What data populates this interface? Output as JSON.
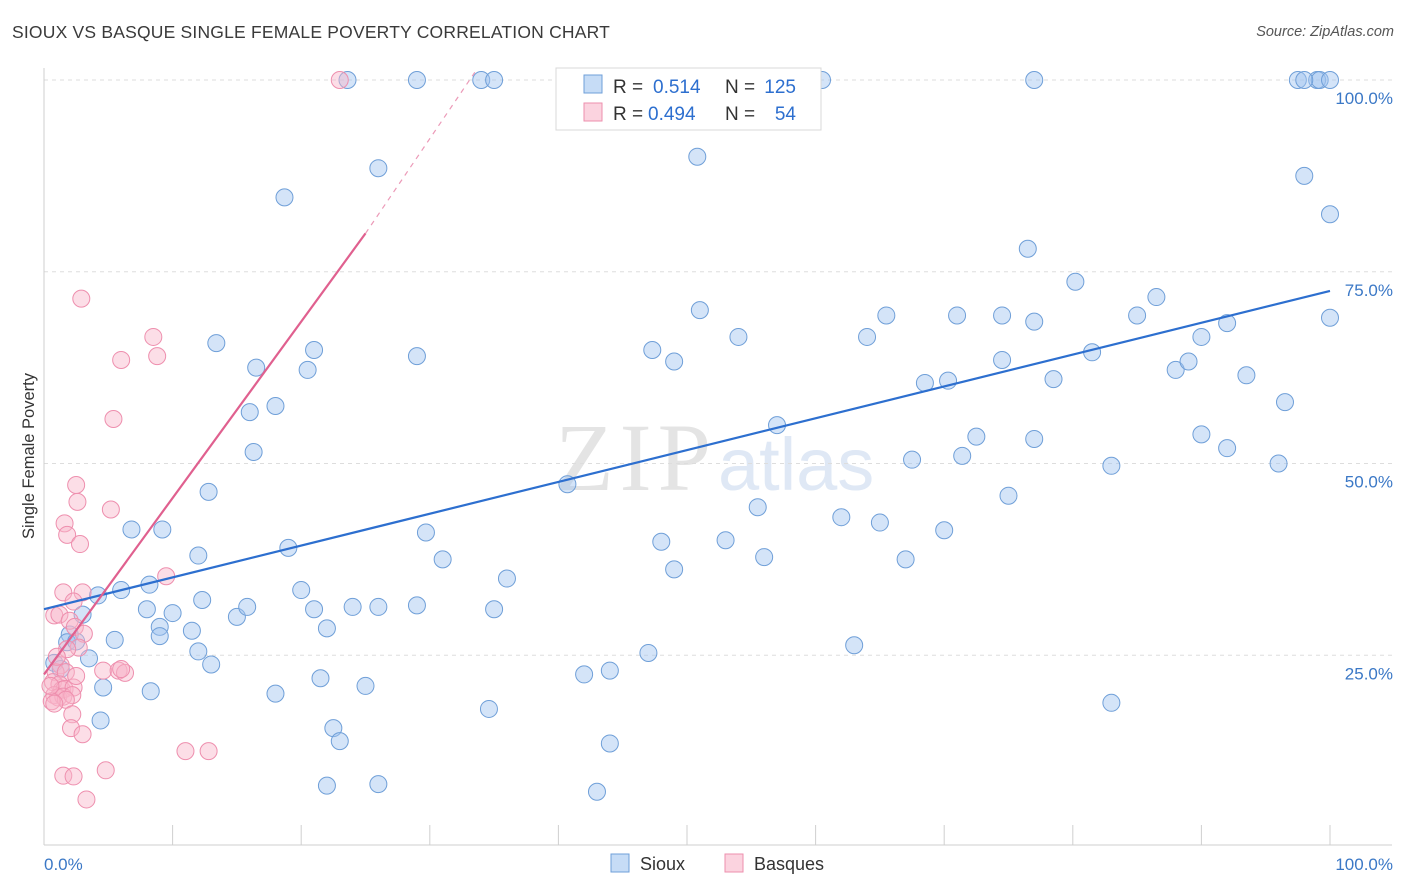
{
  "title": "SIOUX VS BASQUE SINGLE FEMALE POVERTY CORRELATION CHART",
  "source": "Source: ZipAtlas.com",
  "watermark": {
    "zip": "ZIP",
    "atlas": "atlas"
  },
  "colors": {
    "sioux_fill": "rgba(160,196,240,0.45)",
    "sioux_stroke": "#6f9fd8",
    "sioux_line": "#2d6fcf",
    "basque_fill": "rgba(248,182,202,0.45)",
    "basque_stroke": "#ee8fae",
    "basque_line": "#e0608f",
    "tick_label": "#3b78c6",
    "grid": "#dddddd"
  },
  "legend": {
    "rows": [
      {
        "r_label": "R =",
        "r_value": "0.514",
        "n_label": "N =",
        "n_value": "125"
      },
      {
        "r_label": "R =",
        "r_value": "0.494",
        "n_label": "N =",
        "n_value": "54"
      }
    ]
  },
  "bottom_legend": {
    "sioux": "Sioux",
    "basques": "Basques"
  },
  "chart_data": {
    "type": "scatter",
    "title": "SIOUX VS BASQUE SINGLE FEMALE POVERTY CORRELATION CHART",
    "xlabel": "",
    "ylabel": "Single Female Poverty",
    "xlim": [
      0,
      100
    ],
    "ylim": [
      0,
      103
    ],
    "x_tick_labels": [
      "0.0%",
      "100.0%"
    ],
    "y_tick_labels": [
      {
        "value": 25,
        "label": "25.0%"
      },
      {
        "value": 50,
        "label": "50.0%"
      },
      {
        "value": 75,
        "label": "75.0%"
      },
      {
        "value": 100,
        "label": "100.0%"
      }
    ],
    "series": [
      {
        "name": "Sioux",
        "r": 0.514,
        "n": 125,
        "trend": {
          "x0": 0,
          "y0": 31,
          "x1": 100,
          "y1": 72.5
        },
        "points": [
          [
            23.6,
            100
          ],
          [
            29,
            100
          ],
          [
            34,
            100
          ],
          [
            35,
            100
          ],
          [
            43,
            100
          ],
          [
            60.5,
            100
          ],
          [
            77,
            100
          ],
          [
            97.5,
            100
          ],
          [
            99,
            100
          ],
          [
            99.2,
            100
          ],
          [
            98,
            100
          ],
          [
            100,
            100
          ],
          [
            26,
            88.5
          ],
          [
            50.8,
            90
          ],
          [
            98,
            87.5
          ],
          [
            100,
            82.5
          ],
          [
            18.7,
            84.7
          ],
          [
            76.5,
            78
          ],
          [
            80.2,
            73.7
          ],
          [
            13.4,
            65.7
          ],
          [
            16.5,
            62.5
          ],
          [
            20.5,
            62.2
          ],
          [
            21,
            64.8
          ],
          [
            29,
            64
          ],
          [
            47.3,
            64.8
          ],
          [
            49,
            63.3
          ],
          [
            54,
            66.5
          ],
          [
            74.5,
            63.5
          ],
          [
            78.5,
            61
          ],
          [
            81.5,
            64.5
          ],
          [
            88,
            62.2
          ],
          [
            89,
            63.3
          ],
          [
            93.5,
            61.5
          ],
          [
            96.5,
            58
          ],
          [
            68.5,
            60.5
          ],
          [
            70.3,
            60.8
          ],
          [
            65.5,
            69.3
          ],
          [
            71,
            69.3
          ],
          [
            74.5,
            69.3
          ],
          [
            77,
            68.5
          ],
          [
            85,
            69.3
          ],
          [
            86.5,
            71.7
          ],
          [
            90,
            66.5
          ],
          [
            92,
            68.3
          ],
          [
            100,
            69
          ],
          [
            51,
            70
          ],
          [
            64,
            66.5
          ],
          [
            57,
            55
          ],
          [
            16,
            56.7
          ],
          [
            18,
            57.5
          ],
          [
            16.3,
            51.5
          ],
          [
            12.8,
            46.3
          ],
          [
            40.7,
            47.3
          ],
          [
            55.5,
            44.3
          ],
          [
            62,
            43
          ],
          [
            65,
            42.3
          ],
          [
            70,
            41.3
          ],
          [
            72.5,
            53.5
          ],
          [
            75,
            45.8
          ],
          [
            77,
            53.2
          ],
          [
            83,
            49.7
          ],
          [
            90,
            53.8
          ],
          [
            92,
            52
          ],
          [
            96,
            50
          ],
          [
            67.5,
            50.5
          ],
          [
            71.4,
            51
          ],
          [
            6.8,
            41.4
          ],
          [
            9.2,
            41.4
          ],
          [
            12,
            38
          ],
          [
            19,
            39
          ],
          [
            29.7,
            41
          ],
          [
            31,
            37.5
          ],
          [
            36,
            35
          ],
          [
            48,
            39.8
          ],
          [
            49,
            36.2
          ],
          [
            53,
            40
          ],
          [
            56,
            37.8
          ],
          [
            67,
            37.5
          ],
          [
            4.2,
            32.8
          ],
          [
            6,
            33.5
          ],
          [
            8.2,
            34.2
          ],
          [
            8,
            31
          ],
          [
            10,
            30.5
          ],
          [
            12.3,
            32.2
          ],
          [
            15,
            30
          ],
          [
            15.8,
            31.3
          ],
          [
            20,
            33.5
          ],
          [
            21,
            31
          ],
          [
            24,
            31.3
          ],
          [
            26,
            31.3
          ],
          [
            29,
            31.5
          ],
          [
            35,
            31
          ],
          [
            3,
            30.3
          ],
          [
            9,
            28.7
          ],
          [
            11.5,
            28.2
          ],
          [
            22,
            28.5
          ],
          [
            2,
            27.7
          ],
          [
            1.8,
            26.7
          ],
          [
            2.5,
            26.8
          ],
          [
            5.5,
            27
          ],
          [
            9,
            27.5
          ],
          [
            12,
            25.5
          ],
          [
            13,
            23.8
          ],
          [
            3.5,
            24.6
          ],
          [
            0.8,
            24
          ],
          [
            1.3,
            23.2
          ],
          [
            18,
            20
          ],
          [
            21.5,
            22
          ],
          [
            25,
            21
          ],
          [
            34.6,
            18
          ],
          [
            44,
            23
          ],
          [
            42,
            22.5
          ],
          [
            47,
            25.3
          ],
          [
            63,
            26.3
          ],
          [
            83,
            18.8
          ],
          [
            4.6,
            20.8
          ],
          [
            8.3,
            20.3
          ],
          [
            4.4,
            16.5
          ],
          [
            22.5,
            15.5
          ],
          [
            23,
            13.8
          ],
          [
            44,
            13.5
          ],
          [
            22,
            8
          ],
          [
            26,
            8.2
          ],
          [
            43,
            7.2
          ]
        ]
      },
      {
        "name": "Basques",
        "r": 0.494,
        "n": 54,
        "trend": {
          "x0": 0,
          "y0": 22.5,
          "x1": 25,
          "y1": 80,
          "dash_x1": 33.5,
          "dash_y1": 101
        },
        "points": [
          [
            23,
            100
          ],
          [
            2.9,
            71.5
          ],
          [
            6,
            63.5
          ],
          [
            8.5,
            66.5
          ],
          [
            8.8,
            64
          ],
          [
            5.4,
            55.8
          ],
          [
            2.5,
            47.2
          ],
          [
            2.6,
            45
          ],
          [
            5.2,
            44
          ],
          [
            1.6,
            42.2
          ],
          [
            1.8,
            40.7
          ],
          [
            2.8,
            39.5
          ],
          [
            9.5,
            35.3
          ],
          [
            1.5,
            33.2
          ],
          [
            3,
            33.2
          ],
          [
            2.3,
            32
          ],
          [
            0.8,
            30.2
          ],
          [
            1.2,
            30.3
          ],
          [
            2,
            29.5
          ],
          [
            2.4,
            28.7
          ],
          [
            3.1,
            27.8
          ],
          [
            2.7,
            26
          ],
          [
            1.8,
            25.8
          ],
          [
            1.3,
            23.7
          ],
          [
            0.9,
            22.8
          ],
          [
            1.7,
            22.8
          ],
          [
            0.7,
            21.5
          ],
          [
            1.2,
            21.2
          ],
          [
            1.4,
            20.5
          ],
          [
            1.6,
            20.6
          ],
          [
            2.3,
            20.8
          ],
          [
            0.8,
            19.8
          ],
          [
            1.1,
            19.5
          ],
          [
            1.5,
            19.6
          ],
          [
            2.2,
            19.8
          ],
          [
            1.7,
            19.2
          ],
          [
            0.6,
            19
          ],
          [
            0.8,
            18.7
          ],
          [
            4.6,
            23
          ],
          [
            5.8,
            23
          ],
          [
            6.3,
            22.7
          ],
          [
            2.5,
            22.3
          ],
          [
            2.2,
            17.3
          ],
          [
            2.1,
            15.5
          ],
          [
            3,
            14.7
          ],
          [
            1.5,
            9.3
          ],
          [
            2.3,
            9.2
          ],
          [
            4.8,
            10
          ],
          [
            3.3,
            6.2
          ],
          [
            11,
            12.5
          ],
          [
            12.8,
            12.5
          ],
          [
            6,
            23.2
          ],
          [
            0.5,
            21
          ],
          [
            1,
            24.8
          ]
        ]
      }
    ]
  }
}
